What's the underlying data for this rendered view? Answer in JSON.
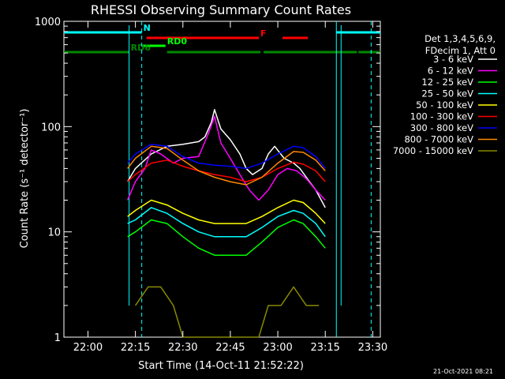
{
  "chart_data": {
    "type": "line",
    "title": "RHESSI Observing Summary Count Rates",
    "xlabel": "Start Time (14-Oct-11 21:52:22)",
    "ylabel": "Count Rate (s⁻¹ detector⁻¹)",
    "y_scale": "log",
    "ylim": [
      1,
      1000
    ],
    "xlim_minutes_after_start": [
      0,
      100
    ],
    "x_ticks": [
      {
        "label": "22:00",
        "minute": 7.6
      },
      {
        "label": "22:15",
        "minute": 22.6
      },
      {
        "label": "22:30",
        "minute": 37.6
      },
      {
        "label": "22:45",
        "minute": 52.6
      },
      {
        "label": "23:00",
        "minute": 67.6
      },
      {
        "label": "23:15",
        "minute": 82.6
      },
      {
        "label": "23:30",
        "minute": 97.6
      }
    ],
    "y_ticks": [
      {
        "label": "1",
        "value": 1
      },
      {
        "label": "10",
        "value": 10
      },
      {
        "label": "100",
        "value": 100
      },
      {
        "label": "1000",
        "value": 1000
      }
    ],
    "legend_header": [
      "Det 1,3,4,5,6,9,",
      "FDecim 1, Att 0"
    ],
    "legend_placement": "right",
    "series": [
      {
        "name": "3 - 6 keV",
        "color": "#ffffff",
        "x": [
          20.1,
          22.6,
          27.6,
          32.6,
          37.6,
          42.6,
          44.6,
          46.6,
          47.6,
          49.6,
          52.6,
          55.6,
          57.6,
          59.6,
          62.6,
          64.6,
          66.6,
          69.6,
          72.6,
          74.6,
          77.6,
          79.6,
          82.6
        ],
        "y": [
          30,
          40,
          55,
          65,
          68,
          72,
          80,
          110,
          145,
          95,
          75,
          55,
          40,
          35,
          40,
          55,
          65,
          50,
          45,
          40,
          30,
          25,
          17
        ]
      },
      {
        "name": "6 - 12 keV",
        "color": "#ff00ff",
        "x": [
          20.1,
          22.6,
          25.6,
          27.6,
          30.6,
          34.6,
          37.6,
          42.6,
          45.6,
          47.6,
          49.6,
          52.6,
          55.6,
          58.6,
          61.6,
          64.6,
          67.6,
          70.6,
          73.6,
          76.6,
          79.6,
          82.6
        ],
        "y": [
          20,
          30,
          40,
          60,
          55,
          45,
          50,
          52,
          85,
          125,
          70,
          50,
          35,
          25,
          20,
          25,
          35,
          40,
          38,
          32,
          25,
          20
        ]
      },
      {
        "name": "12 - 25 keV",
        "color": "#00ff00",
        "x": [
          20.1,
          22.6,
          27.6,
          32.6,
          37.6,
          42.6,
          47.6,
          52.6,
          57.6,
          62.6,
          67.6,
          72.6,
          75.6,
          79.6,
          82.6
        ],
        "y": [
          9,
          10,
          13,
          12,
          9,
          7,
          6,
          6,
          6,
          8,
          11,
          13,
          12,
          9,
          7
        ]
      },
      {
        "name": "25 - 50 keV",
        "color": "#00ffff",
        "x": [
          20.1,
          22.6,
          27.6,
          32.6,
          37.6,
          42.6,
          47.6,
          52.6,
          57.6,
          62.6,
          67.6,
          72.6,
          75.6,
          79.6,
          82.6
        ],
        "y": [
          12,
          13,
          17,
          15,
          12,
          10,
          9,
          9,
          9,
          11,
          14,
          16,
          15,
          12,
          9
        ]
      },
      {
        "name": "50 - 100 keV",
        "color": "#ffff00",
        "x": [
          20.1,
          22.6,
          27.6,
          32.6,
          37.6,
          42.6,
          47.6,
          52.6,
          57.6,
          62.6,
          67.6,
          72.6,
          75.6,
          79.6,
          82.6
        ],
        "y": [
          14,
          16,
          20,
          18,
          15,
          13,
          12,
          12,
          12,
          14,
          17,
          20,
          19,
          15,
          12
        ]
      },
      {
        "name": "100 - 300 keV",
        "color": "#ff0000",
        "x": [
          20.1,
          22.6,
          27.6,
          32.6,
          37.6,
          42.6,
          47.6,
          52.6,
          57.6,
          62.6,
          67.6,
          72.6,
          75.6,
          79.6,
          82.6
        ],
        "y": [
          30,
          35,
          45,
          48,
          42,
          38,
          35,
          33,
          30,
          33,
          40,
          46,
          44,
          38,
          30
        ]
      },
      {
        "name": "300 - 800 keV",
        "color": "#0000ff",
        "x": [
          20.1,
          22.6,
          27.6,
          32.6,
          37.6,
          42.6,
          47.6,
          52.6,
          57.6,
          62.6,
          67.6,
          72.6,
          75.6,
          79.6,
          82.6
        ],
        "y": [
          45,
          55,
          68,
          65,
          52,
          45,
          43,
          42,
          40,
          45,
          55,
          65,
          63,
          52,
          40
        ]
      },
      {
        "name": "800 - 7000 keV",
        "color": "#ff8800",
        "x": [
          20.1,
          22.6,
          27.6,
          32.6,
          37.6,
          42.6,
          47.6,
          52.6,
          57.6,
          62.6,
          67.6,
          72.6,
          75.6,
          79.6,
          82.6
        ],
        "y": [
          40,
          50,
          65,
          62,
          48,
          38,
          33,
          30,
          28,
          33,
          45,
          58,
          57,
          48,
          38
        ]
      },
      {
        "name": "7000 - 15000 keV",
        "color": "#888800",
        "x": [
          22.6,
          26.6,
          30.6,
          34.6,
          37.6,
          42.6,
          47.6,
          52.6,
          57.6,
          61.6,
          64.6,
          68.6,
          72.6,
          76.6,
          80.6
        ],
        "y": [
          2,
          3,
          3,
          2,
          1,
          1,
          1,
          1,
          1,
          1,
          2,
          2,
          3,
          2,
          2
        ]
      }
    ],
    "flags": [
      {
        "label": "N",
        "color": "#00ffff",
        "start": 0,
        "end": 24.6
      },
      {
        "label": "N",
        "color": "#00ffff",
        "start": 86.1,
        "end": 100
      },
      {
        "label": "F",
        "color": "#ff0000",
        "start": 26.1,
        "end": 61.6
      },
      {
        "label": "F",
        "color": "#ff0000",
        "start": 69.1,
        "end": 77.1
      },
      {
        "label": "RD0",
        "color": "#00ff00",
        "start": 24.6,
        "end": 32.1
      },
      {
        "label": "RD6",
        "color": "#008800",
        "start": 0,
        "end": 20.6
      },
      {
        "label": "RD6",
        "color": "#008800",
        "start": 32.6,
        "end": 62.1
      },
      {
        "label": "RD6",
        "color": "#008800",
        "start": 63.1,
        "end": 92.6
      },
      {
        "label": "RD6",
        "color": "#008800",
        "start": 93.1,
        "end": 100
      }
    ],
    "grid": false
  },
  "timestamp": "21-Oct-2021 08:21"
}
